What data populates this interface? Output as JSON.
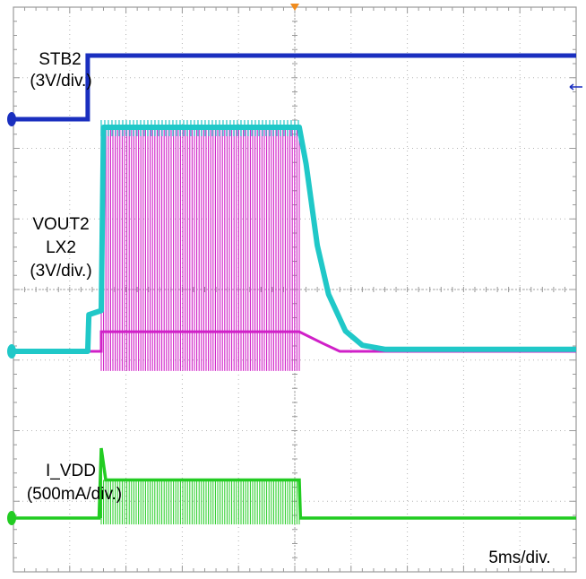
{
  "chart_data": {
    "type": "line",
    "title": "",
    "time_scale": "5ms/div.",
    "x_unit": "ms",
    "x_range": [
      0,
      50
    ],
    "grid": true,
    "channels": [
      {
        "id": 1,
        "name": "STB2",
        "scale": "(3V/div.)",
        "color": "#1a2fbf",
        "description_levels": {
          "low_v": 0,
          "high_v": 6.0
        },
        "points": [
          [
            0,
            0
          ],
          [
            6.6,
            0
          ],
          [
            6.6,
            6.0
          ],
          [
            50,
            6.0
          ]
        ]
      },
      {
        "id": 2,
        "name": "VOUT2",
        "scale": "(3V/div.)",
        "color": "#20c8c8",
        "points": [
          [
            0,
            0
          ],
          [
            6.6,
            0
          ],
          [
            6.7,
            0.9
          ],
          [
            7.8,
            1.0
          ],
          [
            8.0,
            5.5
          ],
          [
            25.4,
            5.5
          ],
          [
            26.0,
            4.6
          ],
          [
            27.0,
            2.6
          ],
          [
            28.0,
            1.4
          ],
          [
            29.5,
            0.5
          ],
          [
            31.0,
            0.15
          ],
          [
            33.0,
            0.05
          ],
          [
            50,
            0.05
          ]
        ]
      },
      {
        "id": 3,
        "name": "LX2",
        "scale": "(3V/div.)",
        "color": "#d020c8",
        "switching": {
          "start_ms": 7.8,
          "end_ms": 25.4,
          "high_v": 5.7,
          "low_v": -0.5
        },
        "points": [
          [
            0,
            0
          ],
          [
            6.6,
            0
          ],
          [
            7.8,
            0
          ],
          [
            7.8,
            0.5
          ],
          [
            25.4,
            0.5
          ],
          [
            27.5,
            0.2
          ],
          [
            29.0,
            0.0
          ],
          [
            50,
            0.0
          ]
        ]
      },
      {
        "id": 4,
        "name": "I_VDD",
        "scale": "(500mA/div.)",
        "color": "#22cc22",
        "inrush_peak_a": 0.55,
        "ripple_high_a": 0.3,
        "switching": {
          "start_ms": 7.8,
          "end_ms": 25.4
        },
        "points": [
          [
            0,
            0
          ],
          [
            7.6,
            0
          ],
          [
            7.8,
            0.55
          ],
          [
            8.2,
            0.3
          ],
          [
            25.4,
            0.3
          ],
          [
            25.5,
            0
          ],
          [
            50,
            0
          ]
        ]
      }
    ],
    "labels": {
      "stb2_name": "STB2",
      "stb2_scale": "(3V/div.)",
      "vout2_name": "VOUT2",
      "lx2_name": "LX2",
      "vout2_scale": "(3V/div.)",
      "ivdd_name": "I_VDD",
      "ivdd_scale": "(500mA/div.)",
      "timebase": "5ms/div."
    }
  }
}
